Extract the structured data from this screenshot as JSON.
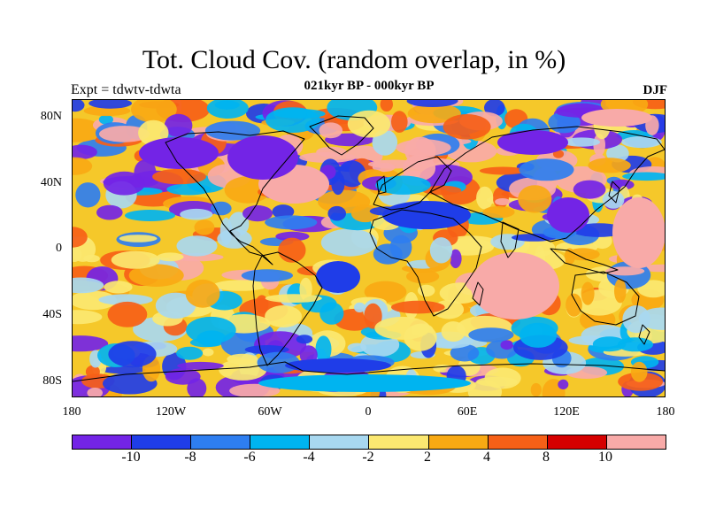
{
  "title": "Tot. Cloud Cov. (random overlap, in %)",
  "subtitle": "021kyr BP - 000kyr BP",
  "left_label": "Expt = tdwtv-tdwta",
  "right_label": "DJF",
  "lat_labels": [
    "80N",
    "40N",
    "0",
    "40S",
    "80S"
  ],
  "lon_labels": [
    "180",
    "120W",
    "60W",
    "0",
    "60E",
    "120E",
    "180"
  ],
  "colorbar": {
    "colors": [
      "#7324e6",
      "#1f3de8",
      "#2e7ef0",
      "#00b4f0",
      "#a8d8f0",
      "#fbe871",
      "#f8a913",
      "#f66017",
      "#d60000",
      "#f8aaa8"
    ],
    "labels": [
      "-10",
      "-8",
      "-6",
      "-4",
      "-2",
      "2",
      "4",
      "8",
      "10"
    ]
  },
  "icons": {
    "map": "world-map-coastlines"
  }
}
